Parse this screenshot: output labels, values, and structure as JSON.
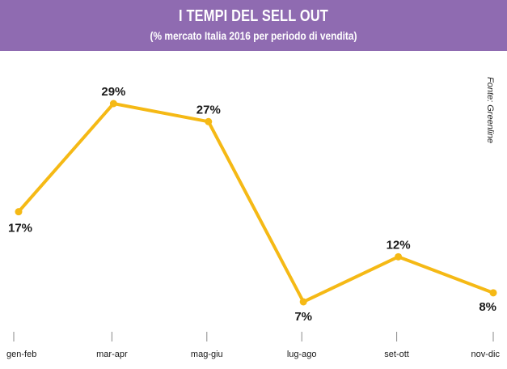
{
  "header": {
    "title": "I TEMPI DEL SELL OUT",
    "subtitle": "(% mercato Italia 2016 per periodo di vendita)"
  },
  "source": "Fonte: Greenline",
  "colors": {
    "header_background": "#8f6bb1",
    "line": "#f5b915",
    "axis": "#888888"
  },
  "chart_data": {
    "type": "line",
    "categories": [
      "gen-feb",
      "mar-apr",
      "mag-giu",
      "lug-ago",
      "set-ott",
      "nov-dic"
    ],
    "series": [
      {
        "values": [
          17,
          29,
          27,
          7,
          12,
          8
        ]
      }
    ],
    "data_labels": [
      "17%",
      "29%",
      "27%",
      "7%",
      "12%",
      "8%"
    ],
    "title": "I TEMPI DEL SELL OUT",
    "subtitle": "(% mercato Italia 2016 per periodo di vendita)",
    "xlabel": "",
    "ylabel": "",
    "grid": false,
    "legend": "none"
  }
}
